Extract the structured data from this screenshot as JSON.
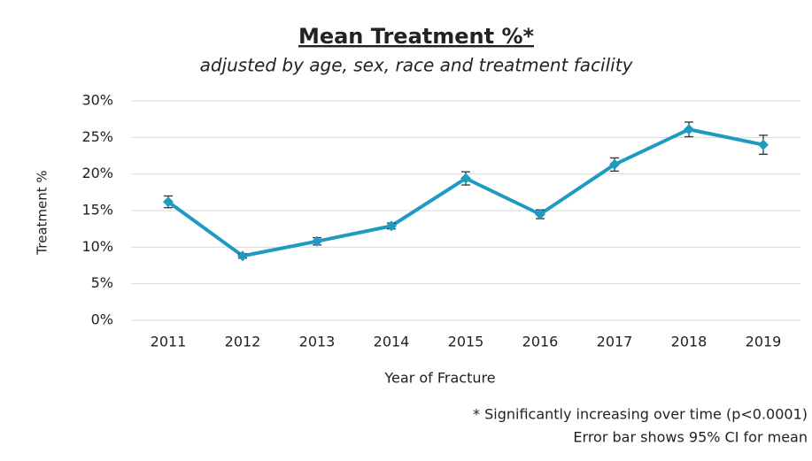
{
  "chart_data": {
    "type": "line",
    "title": "Mean Treatment %*",
    "subtitle": "adjusted by age, sex, race and treatment facility",
    "y_label": "Treatment %",
    "x_label": "Year of Fracture",
    "annotations": [
      "* Significantly increasing over time (p<0.0001)",
      "Error bar shows 95% CI for mean"
    ],
    "categories": [
      "2011",
      "2012",
      "2013",
      "2014",
      "2015",
      "2016",
      "2017",
      "2018",
      "2019"
    ],
    "series": [
      {
        "name": "Mean Treatment %",
        "color": "#1f9bc2",
        "values": [
          16.2,
          8.8,
          10.8,
          12.9,
          19.4,
          14.5,
          21.3,
          26.1,
          24.0
        ],
        "errors": [
          0.8,
          0.3,
          0.5,
          0.4,
          0.9,
          0.6,
          0.9,
          1.0,
          1.3
        ]
      }
    ],
    "ylim": [
      0,
      30
    ],
    "yticks": [
      {
        "value": 0,
        "label": "0%"
      },
      {
        "value": 5,
        "label": "5%"
      },
      {
        "value": 10,
        "label": "10%"
      },
      {
        "value": 15,
        "label": "15%"
      },
      {
        "value": 20,
        "label": "20%"
      },
      {
        "value": 25,
        "label": "25%"
      },
      {
        "value": 30,
        "label": "30%"
      }
    ],
    "grid": true
  }
}
